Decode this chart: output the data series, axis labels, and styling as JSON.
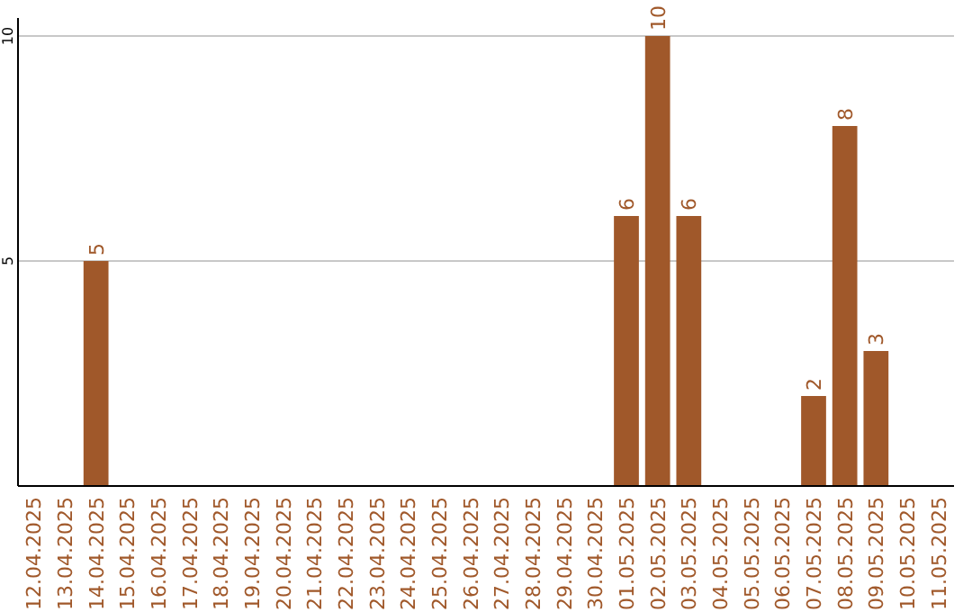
{
  "chart_data": {
    "type": "bar",
    "categories": [
      "12.04.2025",
      "13.04.2025",
      "14.04.2025",
      "15.04.2025",
      "16.04.2025",
      "17.04.2025",
      "18.04.2025",
      "19.04.2025",
      "20.04.2025",
      "21.04.2025",
      "22.04.2025",
      "23.04.2025",
      "24.04.2025",
      "25.04.2025",
      "26.04.2025",
      "27.04.2025",
      "28.04.2025",
      "29.04.2025",
      "30.04.2025",
      "01.05.2025",
      "02.05.2025",
      "03.05.2025",
      "04.05.2025",
      "05.05.2025",
      "06.05.2025",
      "07.05.2025",
      "08.05.2025",
      "09.05.2025",
      "10.05.2025",
      "11.05.2025"
    ],
    "values": [
      0,
      0,
      5,
      0,
      0,
      0,
      0,
      0,
      0,
      0,
      0,
      0,
      0,
      0,
      0,
      0,
      0,
      0,
      0,
      6,
      10,
      6,
      0,
      0,
      0,
      2,
      8,
      3,
      0,
      0
    ],
    "value_labels": [
      null,
      null,
      "5",
      null,
      null,
      null,
      null,
      null,
      null,
      null,
      null,
      null,
      null,
      null,
      null,
      null,
      null,
      null,
      null,
      "6",
      "10",
      "6",
      null,
      null,
      null,
      "2",
      "8",
      "3",
      null,
      null
    ],
    "color": "#a0582a",
    "ylim": [
      0,
      10
    ],
    "yticks": [
      5,
      10
    ],
    "grid": "y"
  }
}
